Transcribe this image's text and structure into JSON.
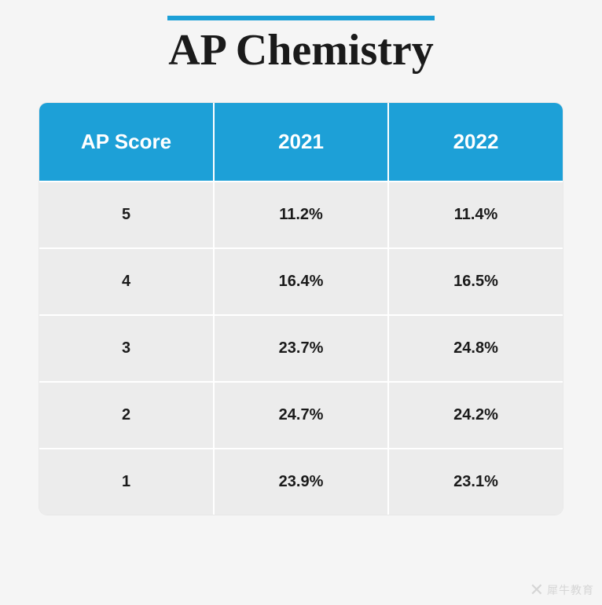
{
  "title": "AP Chemistry",
  "title_bar_color": "#1da0d7",
  "table": {
    "type": "table",
    "header_bg": "#1da0d7",
    "header_text_color": "#ffffff",
    "row_bg": "#ececec",
    "border_color": "#ffffff",
    "border_width": 2,
    "corner_radius": 10,
    "header_fontsize": 26,
    "cell_fontsize": 20,
    "cell_fontweight": 700,
    "columns": [
      "AP Score",
      "2021",
      "2022"
    ],
    "rows": [
      [
        "5",
        "11.2%",
        "11.4%"
      ],
      [
        "4",
        "16.4%",
        "16.5%"
      ],
      [
        "3",
        "23.7%",
        "24.8%"
      ],
      [
        "2",
        "24.7%",
        "24.2%"
      ],
      [
        "1",
        "23.9%",
        "23.1%"
      ]
    ]
  },
  "background_color": "#f5f5f5",
  "watermark": {
    "icon": "✕",
    "text": "犀牛教育"
  }
}
